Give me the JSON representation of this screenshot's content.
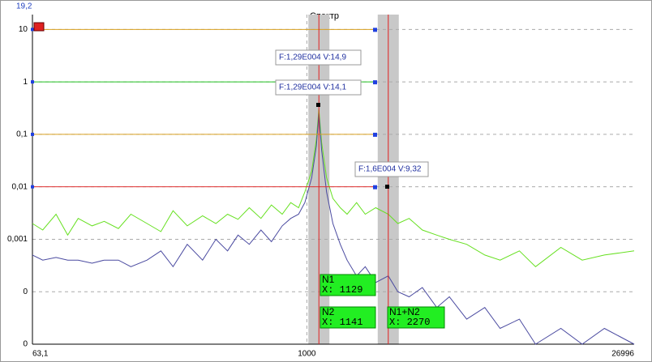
{
  "chart_data": {
    "type": "line",
    "title": "Спектр",
    "xscale": "log",
    "yscale": "log",
    "xlim": [
      63.1,
      26996
    ],
    "xticks": [
      {
        "value": 63.1,
        "label": "63,1"
      },
      1000,
      26996
    ],
    "ylim": [
      1e-05,
      19.2
    ],
    "yticks": [
      {
        "value": 19.2,
        "label": "19,2"
      },
      10,
      1,
      {
        "value": 0.1,
        "label": "0,1"
      },
      {
        "value": 0.01,
        "label": "0,01"
      },
      {
        "value": 0.001,
        "label": "0,001"
      },
      {
        "value": 0.0001,
        "label": "0"
      },
      {
        "value": 1e-05,
        "label": "0"
      }
    ],
    "grid": true,
    "x": [
      63.1,
      70,
      80,
      90,
      100,
      115,
      130,
      150,
      170,
      200,
      230,
      260,
      300,
      350,
      400,
      450,
      500,
      560,
      630,
      700,
      780,
      850,
      920,
      980,
      1050,
      1100,
      1129,
      1160,
      1220,
      1300,
      1400,
      1500,
      1650,
      1800,
      2000,
      2270,
      2500,
      2800,
      3200,
      3700,
      4200,
      5000,
      6000,
      7000,
      8500,
      10000,
      12900,
      16000,
      20000,
      26996
    ],
    "series": [
      {
        "color": "#66e020",
        "values": [
          0.002,
          0.0015,
          0.003,
          0.0012,
          0.0025,
          0.0018,
          0.0022,
          0.0016,
          0.003,
          0.002,
          0.0014,
          0.0035,
          0.0018,
          0.0028,
          0.002,
          0.003,
          0.0024,
          0.004,
          0.0025,
          0.0045,
          0.003,
          0.005,
          0.004,
          0.008,
          0.02,
          0.08,
          0.3,
          0.07,
          0.015,
          0.006,
          0.004,
          0.003,
          0.005,
          0.003,
          0.004,
          0.003,
          0.002,
          0.0025,
          0.0015,
          0.0012,
          0.001,
          0.0008,
          0.0005,
          0.0004,
          0.0006,
          0.0003,
          0.0007,
          0.0004,
          0.0005,
          0.0006
        ]
      },
      {
        "color": "#4a4aa0",
        "values": [
          0.0005,
          0.0004,
          0.00045,
          0.0004,
          0.0004,
          0.00035,
          0.0004,
          0.0004,
          0.0003,
          0.0004,
          0.0006,
          0.0003,
          0.0008,
          0.0004,
          0.001,
          0.0006,
          0.0012,
          0.0008,
          0.0015,
          0.0009,
          0.0018,
          0.0025,
          0.003,
          0.005,
          0.015,
          0.06,
          0.25,
          0.05,
          0.008,
          0.002,
          0.0008,
          0.0004,
          0.0002,
          0.0003,
          0.00015,
          0.0002,
          0.0001,
          8e-05,
          0.00012,
          5e-05,
          8e-05,
          3e-05,
          5e-05,
          2e-05,
          3e-05,
          1e-05,
          2e-05,
          1e-05,
          2e-05,
          1e-05
        ]
      }
    ],
    "levels": [
      {
        "value": 10,
        "color": "#d9a020"
      },
      {
        "value": 1,
        "color": "#20c020"
      },
      {
        "value": 0.1,
        "color": "#d9a020"
      },
      {
        "value": 0.01,
        "color": "#e03030"
      }
    ],
    "cursors": [
      {
        "x": 1129
      },
      {
        "x": 2270
      }
    ],
    "cursor_labels": [
      {
        "name": "N1",
        "label": "X: 1129"
      },
      {
        "name": "N2",
        "label": "X: 1141"
      },
      {
        "name": "N1+N2",
        "label": "X: 2270"
      }
    ],
    "annotations": [
      "F:1,29E004 V:14,9",
      "F:1,29E004 V:14,1",
      "F:1,6E004 V:9,32"
    ]
  }
}
